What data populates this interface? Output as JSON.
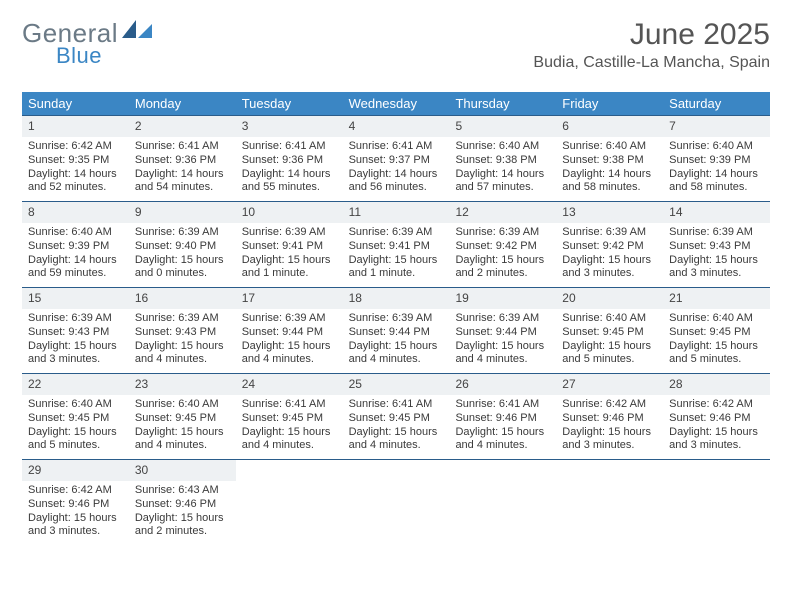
{
  "brand": {
    "word1": "General",
    "word2": "Blue"
  },
  "header": {
    "title": "June 2025",
    "subtitle": "Budia, Castille-La Mancha, Spain"
  },
  "colors": {
    "header_bg": "#3b86c4",
    "week_border": "#2a5c8a",
    "daynum_bg": "#eef1f3",
    "text": "#3a3a3a"
  },
  "daysOfWeek": [
    "Sunday",
    "Monday",
    "Tuesday",
    "Wednesday",
    "Thursday",
    "Friday",
    "Saturday"
  ],
  "weeks": [
    [
      {
        "n": "1",
        "sunrise": "Sunrise: 6:42 AM",
        "sunset": "Sunset: 9:35 PM",
        "daylight": "Daylight: 14 hours and 52 minutes."
      },
      {
        "n": "2",
        "sunrise": "Sunrise: 6:41 AM",
        "sunset": "Sunset: 9:36 PM",
        "daylight": "Daylight: 14 hours and 54 minutes."
      },
      {
        "n": "3",
        "sunrise": "Sunrise: 6:41 AM",
        "sunset": "Sunset: 9:36 PM",
        "daylight": "Daylight: 14 hours and 55 minutes."
      },
      {
        "n": "4",
        "sunrise": "Sunrise: 6:41 AM",
        "sunset": "Sunset: 9:37 PM",
        "daylight": "Daylight: 14 hours and 56 minutes."
      },
      {
        "n": "5",
        "sunrise": "Sunrise: 6:40 AM",
        "sunset": "Sunset: 9:38 PM",
        "daylight": "Daylight: 14 hours and 57 minutes."
      },
      {
        "n": "6",
        "sunrise": "Sunrise: 6:40 AM",
        "sunset": "Sunset: 9:38 PM",
        "daylight": "Daylight: 14 hours and 58 minutes."
      },
      {
        "n": "7",
        "sunrise": "Sunrise: 6:40 AM",
        "sunset": "Sunset: 9:39 PM",
        "daylight": "Daylight: 14 hours and 58 minutes."
      }
    ],
    [
      {
        "n": "8",
        "sunrise": "Sunrise: 6:40 AM",
        "sunset": "Sunset: 9:39 PM",
        "daylight": "Daylight: 14 hours and 59 minutes."
      },
      {
        "n": "9",
        "sunrise": "Sunrise: 6:39 AM",
        "sunset": "Sunset: 9:40 PM",
        "daylight": "Daylight: 15 hours and 0 minutes."
      },
      {
        "n": "10",
        "sunrise": "Sunrise: 6:39 AM",
        "sunset": "Sunset: 9:41 PM",
        "daylight": "Daylight: 15 hours and 1 minute."
      },
      {
        "n": "11",
        "sunrise": "Sunrise: 6:39 AM",
        "sunset": "Sunset: 9:41 PM",
        "daylight": "Daylight: 15 hours and 1 minute."
      },
      {
        "n": "12",
        "sunrise": "Sunrise: 6:39 AM",
        "sunset": "Sunset: 9:42 PM",
        "daylight": "Daylight: 15 hours and 2 minutes."
      },
      {
        "n": "13",
        "sunrise": "Sunrise: 6:39 AM",
        "sunset": "Sunset: 9:42 PM",
        "daylight": "Daylight: 15 hours and 3 minutes."
      },
      {
        "n": "14",
        "sunrise": "Sunrise: 6:39 AM",
        "sunset": "Sunset: 9:43 PM",
        "daylight": "Daylight: 15 hours and 3 minutes."
      }
    ],
    [
      {
        "n": "15",
        "sunrise": "Sunrise: 6:39 AM",
        "sunset": "Sunset: 9:43 PM",
        "daylight": "Daylight: 15 hours and 3 minutes."
      },
      {
        "n": "16",
        "sunrise": "Sunrise: 6:39 AM",
        "sunset": "Sunset: 9:43 PM",
        "daylight": "Daylight: 15 hours and 4 minutes."
      },
      {
        "n": "17",
        "sunrise": "Sunrise: 6:39 AM",
        "sunset": "Sunset: 9:44 PM",
        "daylight": "Daylight: 15 hours and 4 minutes."
      },
      {
        "n": "18",
        "sunrise": "Sunrise: 6:39 AM",
        "sunset": "Sunset: 9:44 PM",
        "daylight": "Daylight: 15 hours and 4 minutes."
      },
      {
        "n": "19",
        "sunrise": "Sunrise: 6:39 AM",
        "sunset": "Sunset: 9:44 PM",
        "daylight": "Daylight: 15 hours and 4 minutes."
      },
      {
        "n": "20",
        "sunrise": "Sunrise: 6:40 AM",
        "sunset": "Sunset: 9:45 PM",
        "daylight": "Daylight: 15 hours and 5 minutes."
      },
      {
        "n": "21",
        "sunrise": "Sunrise: 6:40 AM",
        "sunset": "Sunset: 9:45 PM",
        "daylight": "Daylight: 15 hours and 5 minutes."
      }
    ],
    [
      {
        "n": "22",
        "sunrise": "Sunrise: 6:40 AM",
        "sunset": "Sunset: 9:45 PM",
        "daylight": "Daylight: 15 hours and 5 minutes."
      },
      {
        "n": "23",
        "sunrise": "Sunrise: 6:40 AM",
        "sunset": "Sunset: 9:45 PM",
        "daylight": "Daylight: 15 hours and 4 minutes."
      },
      {
        "n": "24",
        "sunrise": "Sunrise: 6:41 AM",
        "sunset": "Sunset: 9:45 PM",
        "daylight": "Daylight: 15 hours and 4 minutes."
      },
      {
        "n": "25",
        "sunrise": "Sunrise: 6:41 AM",
        "sunset": "Sunset: 9:45 PM",
        "daylight": "Daylight: 15 hours and 4 minutes."
      },
      {
        "n": "26",
        "sunrise": "Sunrise: 6:41 AM",
        "sunset": "Sunset: 9:46 PM",
        "daylight": "Daylight: 15 hours and 4 minutes."
      },
      {
        "n": "27",
        "sunrise": "Sunrise: 6:42 AM",
        "sunset": "Sunset: 9:46 PM",
        "daylight": "Daylight: 15 hours and 3 minutes."
      },
      {
        "n": "28",
        "sunrise": "Sunrise: 6:42 AM",
        "sunset": "Sunset: 9:46 PM",
        "daylight": "Daylight: 15 hours and 3 minutes."
      }
    ],
    [
      {
        "n": "29",
        "sunrise": "Sunrise: 6:42 AM",
        "sunset": "Sunset: 9:46 PM",
        "daylight": "Daylight: 15 hours and 3 minutes."
      },
      {
        "n": "30",
        "sunrise": "Sunrise: 6:43 AM",
        "sunset": "Sunset: 9:46 PM",
        "daylight": "Daylight: 15 hours and 2 minutes."
      },
      {
        "n": "",
        "sunrise": "",
        "sunset": "",
        "daylight": ""
      },
      {
        "n": "",
        "sunrise": "",
        "sunset": "",
        "daylight": ""
      },
      {
        "n": "",
        "sunrise": "",
        "sunset": "",
        "daylight": ""
      },
      {
        "n": "",
        "sunrise": "",
        "sunset": "",
        "daylight": ""
      },
      {
        "n": "",
        "sunrise": "",
        "sunset": "",
        "daylight": ""
      }
    ]
  ]
}
